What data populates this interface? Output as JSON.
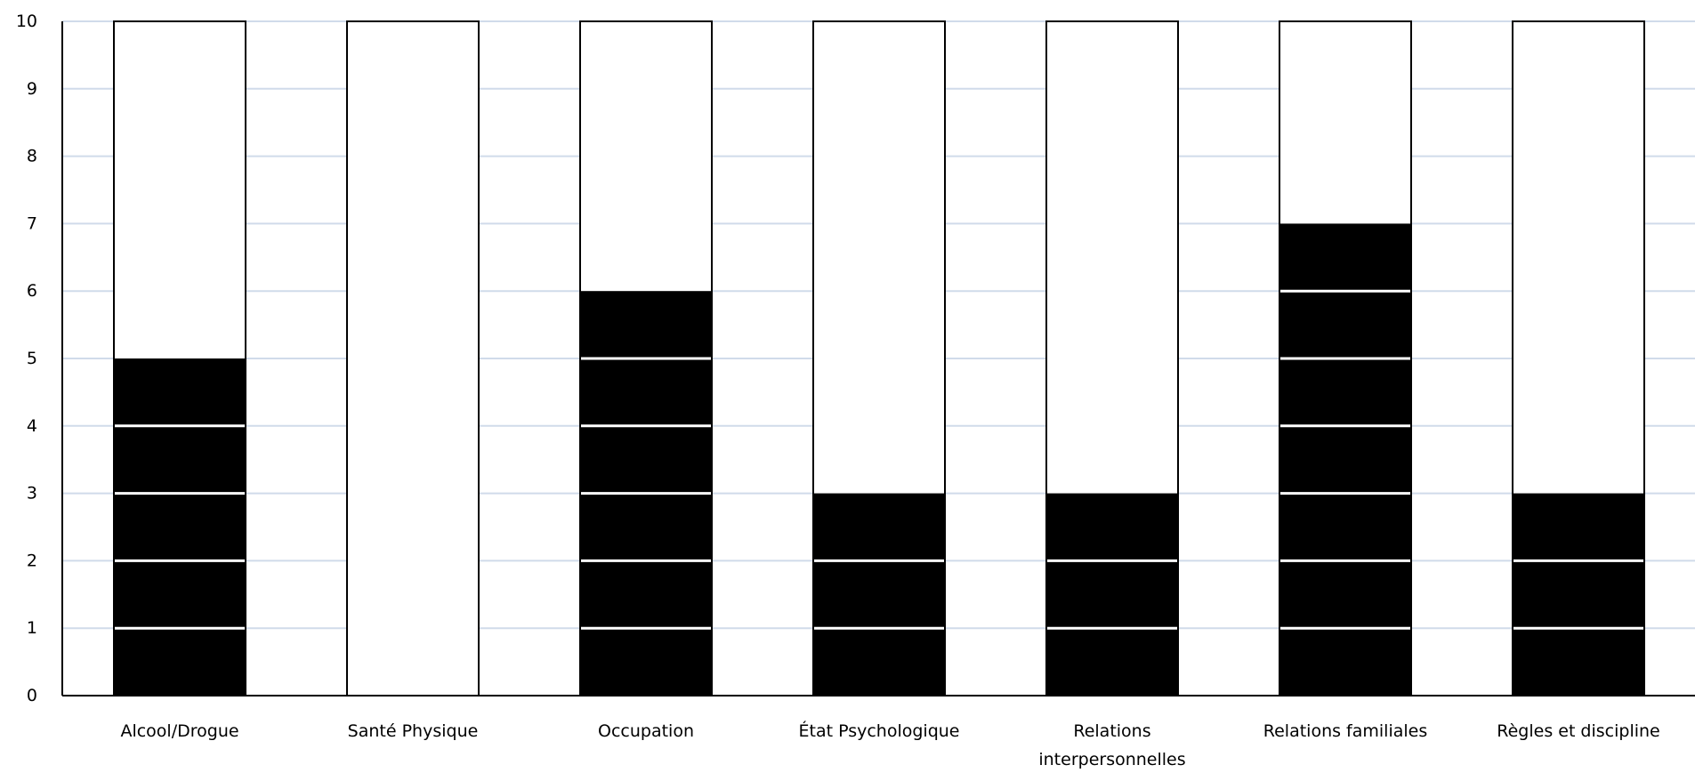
{
  "chart_data": {
    "type": "bar",
    "title": "",
    "xlabel": "",
    "ylabel": "",
    "categories": [
      [
        "Alcool/Drogue"
      ],
      [
        "Santé Physique"
      ],
      [
        "Occupation"
      ],
      [
        "État Psychologique"
      ],
      [
        "Relations",
        "interpersonnelles"
      ],
      [
        "Relations familiales"
      ],
      [
        "Règles et discipline"
      ]
    ],
    "values": [
      5,
      0,
      6,
      3,
      3,
      7,
      3
    ],
    "max_values": [
      10,
      10,
      10,
      10,
      10,
      10,
      10
    ],
    "ylim": [
      0,
      10
    ],
    "yticks": [
      0,
      1,
      2,
      3,
      4,
      5,
      6,
      7,
      8,
      9,
      10
    ],
    "grid": true,
    "legend": "none",
    "colors": {
      "fill": "#000000",
      "empty": "#ffffff",
      "outline": "#000000",
      "grid": "#d0dbea",
      "segment_line": "#ffffff"
    }
  }
}
